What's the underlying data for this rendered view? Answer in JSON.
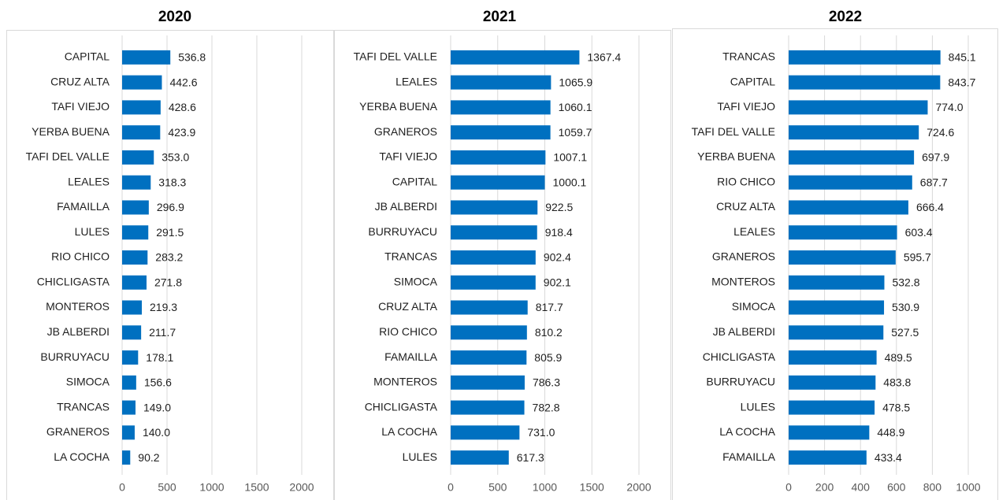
{
  "chart_data": [
    {
      "type": "barh",
      "title": "2020",
      "color": "#0070c0",
      "grid": true,
      "categories": [
        "CAPITAL",
        "CRUZ ALTA",
        "TAFI VIEJO",
        "YERBA BUENA",
        "TAFI DEL VALLE",
        "LEALES",
        "FAMAILLA",
        "LULES",
        "RIO CHICO",
        "CHICLIGASTA",
        "MONTEROS",
        "JB ALBERDI",
        "BURRUYACU",
        "SIMOCA",
        "TRANCAS",
        "GRANEROS",
        "LA COCHA"
      ],
      "values": [
        536.8,
        442.6,
        428.6,
        423.9,
        353.0,
        318.3,
        296.9,
        291.5,
        283.2,
        271.8,
        219.3,
        211.7,
        178.1,
        156.6,
        149.0,
        140.0,
        90.2
      ],
      "value_labels": [
        "536.8",
        "442.6",
        "428.6",
        "423.9",
        "353.0",
        "318.3",
        "296.9",
        "291.5",
        "283.2",
        "271.8",
        "219.3",
        "211.7",
        "178.1",
        "156.6",
        "149.0",
        "140.0",
        "90.2"
      ],
      "xlim": [
        0,
        2000
      ],
      "xticks": [
        0,
        500,
        1000,
        1500,
        2000
      ]
    },
    {
      "type": "barh",
      "title": "2021",
      "color": "#0070c0",
      "grid": true,
      "categories": [
        "TAFI DEL VALLE",
        "LEALES",
        "YERBA BUENA",
        "GRANEROS",
        "TAFI VIEJO",
        "CAPITAL",
        "JB ALBERDI",
        "BURRUYACU",
        "TRANCAS",
        "SIMOCA",
        "CRUZ ALTA",
        "RIO CHICO",
        "FAMAILLA",
        "MONTEROS",
        "CHICLIGASTA",
        "LA COCHA",
        "LULES"
      ],
      "values": [
        1367.4,
        1065.9,
        1060.1,
        1059.7,
        1007.1,
        1000.1,
        922.5,
        918.4,
        902.4,
        902.1,
        817.7,
        810.2,
        805.9,
        786.3,
        782.8,
        731.0,
        617.3
      ],
      "value_labels": [
        "1367.4",
        "1065.9",
        "1060.1",
        "1059.7",
        "1007.1",
        "1000.1",
        "922.5",
        "918.4",
        "902.4",
        "902.1",
        "817.7",
        "810.2",
        "805.9",
        "786.3",
        "782.8",
        "731.0",
        "617.3"
      ],
      "xlim": [
        0,
        2000
      ],
      "xticks": [
        0,
        500,
        1000,
        1500,
        2000
      ]
    },
    {
      "type": "barh",
      "title": "2022",
      "color": "#0070c0",
      "grid": true,
      "categories": [
        "TRANCAS",
        "CAPITAL",
        "TAFI VIEJO",
        "TAFI DEL VALLE",
        "YERBA BUENA",
        "RIO CHICO",
        "CRUZ ALTA",
        "LEALES",
        "GRANEROS",
        "MONTEROS",
        "SIMOCA",
        "JB ALBERDI",
        "CHICLIGASTA",
        "BURRUYACU",
        "LULES",
        "LA COCHA",
        "FAMAILLA"
      ],
      "values": [
        845.1,
        843.7,
        774.0,
        724.6,
        697.9,
        687.7,
        666.4,
        603.4,
        595.7,
        532.8,
        530.9,
        527.5,
        489.5,
        483.8,
        478.5,
        448.9,
        433.4
      ],
      "value_labels": [
        "845.1",
        "843.7",
        "774.0",
        "724.6",
        "697.9",
        "687.7",
        "666.4",
        "603.4",
        "595.7",
        "532.8",
        "530.9",
        "527.5",
        "489.5",
        "483.8",
        "478.5",
        "448.9",
        "433.4"
      ],
      "xlim": [
        0,
        1000
      ],
      "xticks": [
        0,
        200,
        400,
        600,
        800,
        1000
      ]
    }
  ]
}
